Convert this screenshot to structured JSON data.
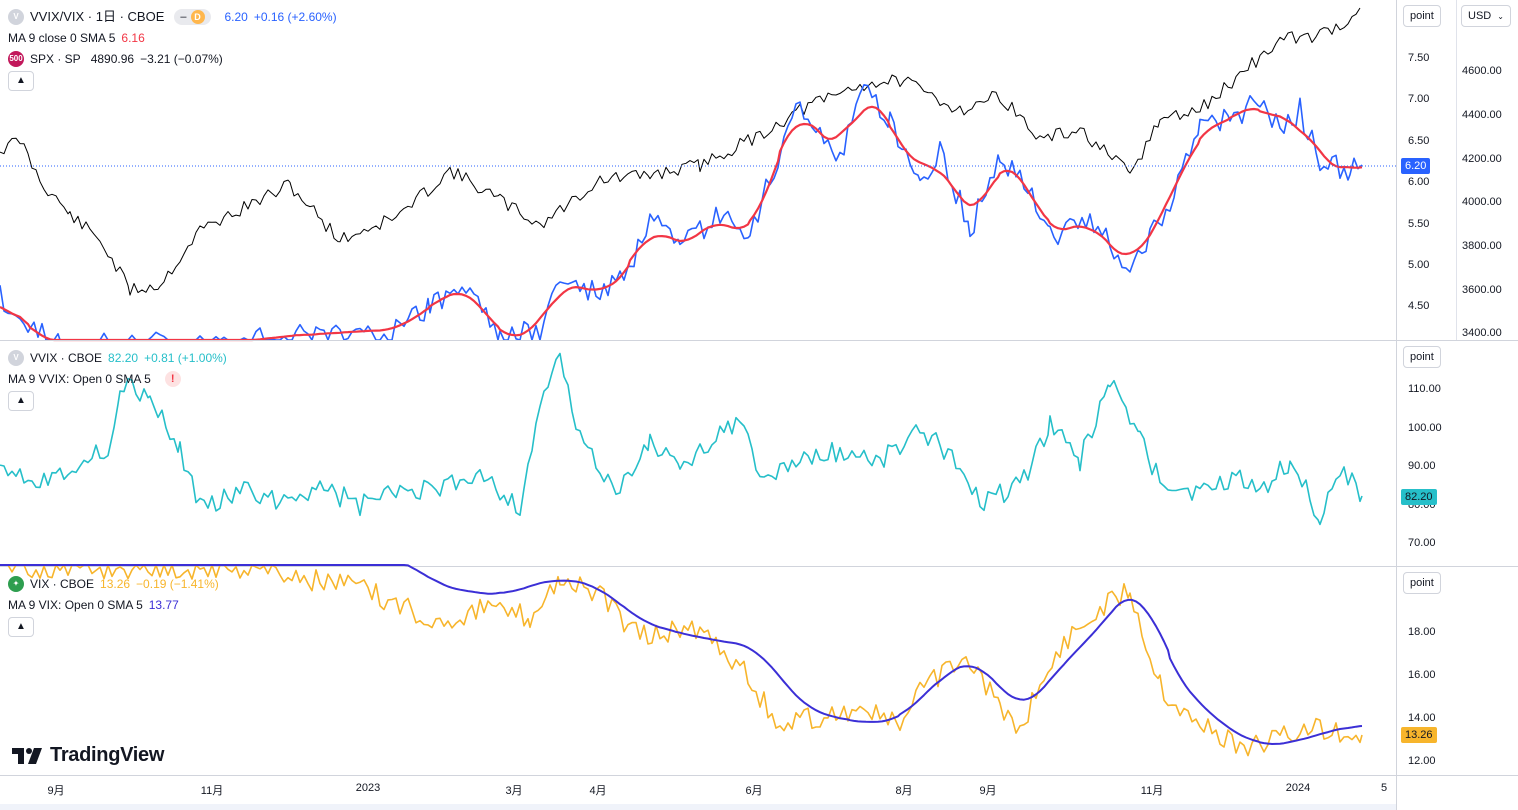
{
  "pane1": {
    "symbol_icon": "V",
    "title": "VVIX/VIX · 1日 · CBOE",
    "badge_letter": "D",
    "last": "6.20",
    "change": "+0.16 (+2.60%)",
    "ma_label": "MA 9 close 0 SMA 5",
    "ma_value": "6.16",
    "compare_icon": "500",
    "compare_title": "SPX · SP",
    "compare_value": "4890.96",
    "compare_change": "−3.21 (−0.07%)",
    "unit": "point",
    "currency": "USD",
    "ticks_right": [
      "7.50",
      "7.00",
      "6.50",
      "6.00",
      "5.50",
      "5.00",
      "4.50"
    ],
    "ticks_far": [
      "4600.00",
      "4400.00",
      "4200.00",
      "4000.00",
      "3800.00",
      "3600.00",
      "3400.00"
    ],
    "price_label": "6.20",
    "colors": {
      "ratio": "#2962ff",
      "ma": "#f23645",
      "spx": "#000000"
    }
  },
  "pane2": {
    "symbol_icon": "V",
    "title": "VVIX · CBOE",
    "last": "82.20",
    "change": "+0.81 (+1.00%)",
    "ma_label": "MA 9 VVIX: Open 0 SMA 5",
    "warn": "!",
    "unit": "point",
    "ticks_right": [
      "110.00",
      "100.00",
      "90.00",
      "80.00",
      "70.00"
    ],
    "price_label": "82.20",
    "colors": {
      "line": "#26bfc9"
    }
  },
  "pane3": {
    "symbol_icon": "✦",
    "title": "VIX · CBOE",
    "last": "13.26",
    "change": "−0.19 (−1.41%)",
    "ma_label": "MA 9 VIX: Open 0 SMA 5",
    "ma_value": "13.77",
    "unit": "point",
    "ticks_right": [
      "18.00",
      "16.00",
      "14.00",
      "12.00"
    ],
    "price_label": "13.26",
    "colors": {
      "line": "#f7b52c",
      "ma": "#3b2fd6"
    }
  },
  "time_axis": [
    "9月",
    "11月",
    "2023",
    "3月",
    "4月",
    "6月",
    "8月",
    "9月",
    "11月",
    "2024",
    "5"
  ],
  "logo": "TradingView"
}
